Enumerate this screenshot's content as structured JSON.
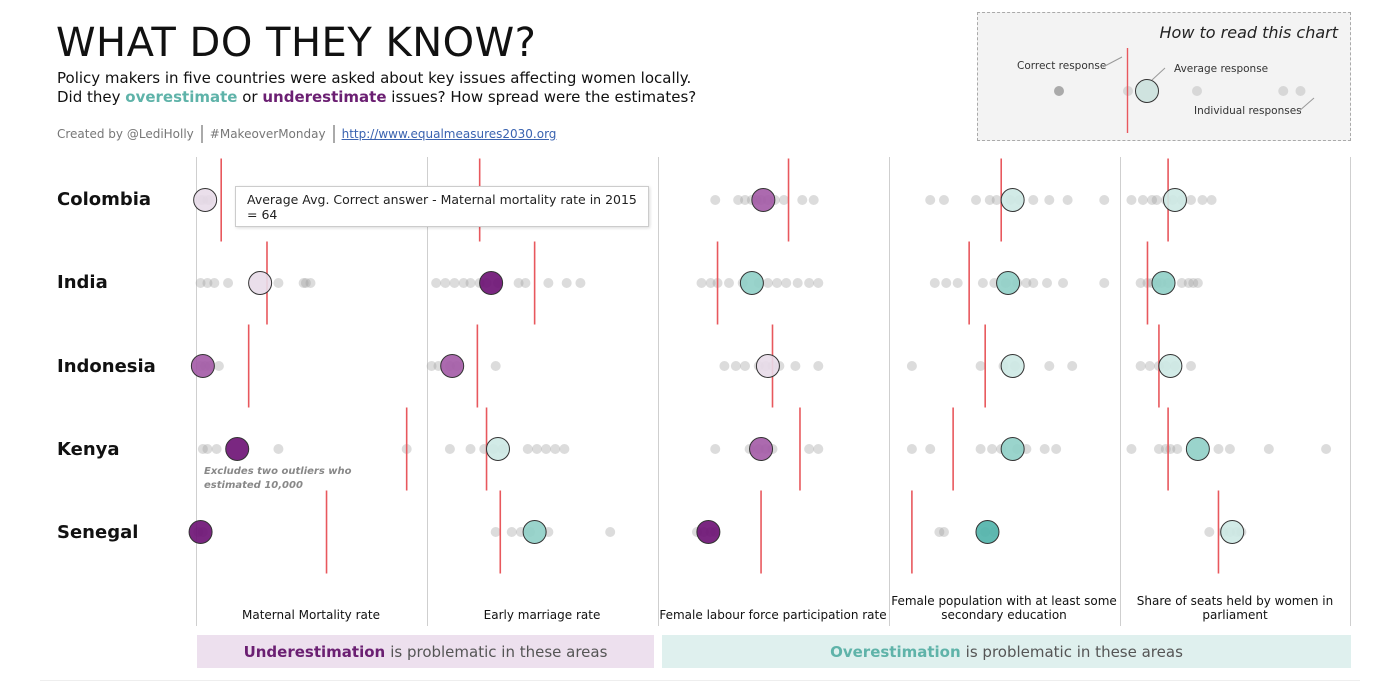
{
  "header": {
    "title": "WHAT DO THEY KNOW?",
    "subtitle_pre": "Policy makers in five countries were asked about key issues affecting women locally. Did they ",
    "subtitle_over": "overestimate",
    "subtitle_mid": " or ",
    "subtitle_under": "underestimate",
    "subtitle_post": " issues? How spread were the estimates?",
    "credit_author": "Created by @LediHolly",
    "credit_tag": "#MakeoverMonday",
    "credit_link": "http://www.equalmeasures2030.org"
  },
  "legend": {
    "title": "How to read this chart",
    "correct": "Correct response",
    "average": "Average response",
    "individual": "Individual responses"
  },
  "tooltip": "Average Avg. Correct answer - Maternal mortality rate in 2015 = 64",
  "note": "Excludes two outliers who estimated 10,000",
  "bands": {
    "under_word": "Underestimation",
    "under_rest": "is problematic in these areas",
    "over_word": "Overestimation",
    "over_rest": "is problematic in these areas"
  },
  "colors": {
    "correct_line": "#e8585d",
    "under_dark": "#6b0f73",
    "under_mid": "#a35aa6",
    "under_light": "#e8dbe9",
    "over_dark": "#4fb3aa",
    "over_mid": "#8fcfc7",
    "over_light": "#cde9e4",
    "individual": "#c8c8c8"
  },
  "chart_data": {
    "type": "scatter",
    "description_note": "Strip plot per country and issue; values are relative positions (0-1) within each column: correct answer line, average response and individual responses.",
    "columns": [
      "Maternal Mortality rate",
      "Early marriage rate",
      "Female labour force participation rate",
      "Female population with at least some secondary education",
      "Share of seats held by women in parliament"
    ],
    "rows": [
      "Colombia",
      "India",
      "Indonesia",
      "Kenya",
      "Senegal"
    ],
    "cells": [
      [
        {
          "correct": 0.11,
          "avg": 0.04,
          "shade": "under_light",
          "ind": [
            0.02,
            0.03,
            0.05,
            0.06
          ]
        },
        {
          "correct": 0.23,
          "avg": null,
          "shade": null,
          "ind": []
        },
        {
          "correct": 0.57,
          "avg": 0.46,
          "shade": "under_mid",
          "ind": [
            0.25,
            0.35,
            0.38,
            0.41,
            0.43,
            0.45,
            0.48,
            0.51,
            0.55,
            0.63,
            0.68
          ]
        },
        {
          "correct": 0.49,
          "avg": 0.54,
          "shade": "over_light",
          "ind": [
            0.18,
            0.24,
            0.38,
            0.44,
            0.47,
            0.53,
            0.57,
            0.63,
            0.7,
            0.78,
            0.94
          ]
        },
        {
          "correct": 0.21,
          "avg": 0.24,
          "shade": "over_light",
          "ind": [
            0.05,
            0.1,
            0.14,
            0.16,
            0.2,
            0.23,
            0.27,
            0.31,
            0.36,
            0.4
          ]
        }
      ],
      [
        {
          "correct": 0.31,
          "avg": 0.28,
          "shade": "under_light",
          "ind": [
            0.02,
            0.05,
            0.08,
            0.14,
            0.36,
            0.47,
            0.48,
            0.5
          ]
        },
        {
          "correct": 0.47,
          "avg": 0.28,
          "shade": "under_dark",
          "ind": [
            0.04,
            0.08,
            0.12,
            0.16,
            0.19,
            0.23,
            0.26,
            0.31,
            0.4,
            0.43,
            0.53,
            0.61,
            0.67
          ]
        },
        {
          "correct": 0.26,
          "avg": 0.41,
          "shade": "over_mid",
          "ind": [
            0.19,
            0.23,
            0.26,
            0.31,
            0.37,
            0.44,
            0.48,
            0.52,
            0.56,
            0.61,
            0.66,
            0.7
          ]
        },
        {
          "correct": 0.35,
          "avg": 0.52,
          "shade": "over_mid",
          "ind": [
            0.2,
            0.25,
            0.3,
            0.41,
            0.46,
            0.51,
            0.56,
            0.6,
            0.63,
            0.69,
            0.76,
            0.94
          ]
        },
        {
          "correct": 0.12,
          "avg": 0.19,
          "shade": "over_mid",
          "ind": [
            0.09,
            0.12,
            0.14,
            0.16,
            0.18,
            0.21,
            0.27,
            0.3,
            0.32,
            0.34
          ]
        }
      ],
      [
        {
          "correct": 0.23,
          "avg": 0.03,
          "shade": "under_mid",
          "ind": [
            0.02,
            0.04,
            0.06,
            0.1
          ]
        },
        {
          "correct": 0.22,
          "avg": 0.11,
          "shade": "under_mid",
          "ind": [
            0.02,
            0.05,
            0.1,
            0.13,
            0.3
          ]
        },
        {
          "correct": 0.5,
          "avg": 0.48,
          "shade": "under_light",
          "ind": [
            0.29,
            0.34,
            0.38,
            0.44,
            0.47,
            0.5,
            0.53,
            0.6,
            0.7
          ]
        },
        {
          "correct": 0.42,
          "avg": 0.54,
          "shade": "over_light",
          "ind": [
            0.1,
            0.4,
            0.5,
            0.55,
            0.7,
            0.8
          ]
        },
        {
          "correct": 0.17,
          "avg": 0.22,
          "shade": "over_light",
          "ind": [
            0.09,
            0.13,
            0.17,
            0.2,
            0.24,
            0.31
          ]
        }
      ],
      [
        {
          "correct": 0.92,
          "avg": 0.18,
          "shade": "under_dark",
          "ind": [
            0.03,
            0.05,
            0.09,
            0.36,
            0.92
          ]
        },
        {
          "correct": 0.26,
          "avg": 0.31,
          "shade": "over_light",
          "ind": [
            0.1,
            0.19,
            0.25,
            0.29,
            0.33,
            0.44,
            0.48,
            0.52,
            0.56,
            0.6
          ]
        },
        {
          "correct": 0.62,
          "avg": 0.45,
          "shade": "under_mid",
          "ind": [
            0.25,
            0.4,
            0.44,
            0.47,
            0.5,
            0.66,
            0.7
          ]
        },
        {
          "correct": 0.28,
          "avg": 0.54,
          "shade": "over_mid",
          "ind": [
            0.1,
            0.18,
            0.4,
            0.45,
            0.49,
            0.56,
            0.6,
            0.68,
            0.73
          ]
        },
        {
          "correct": 0.21,
          "avg": 0.34,
          "shade": "over_mid",
          "ind": [
            0.05,
            0.17,
            0.2,
            0.22,
            0.25,
            0.43,
            0.48,
            0.65,
            0.9
          ]
        }
      ],
      [
        {
          "correct": 0.57,
          "avg": 0.02,
          "shade": "under_dark",
          "ind": [
            0.01,
            0.03
          ]
        },
        {
          "correct": 0.32,
          "avg": 0.47,
          "shade": "over_mid",
          "ind": [
            0.3,
            0.37,
            0.41,
            0.45,
            0.53,
            0.8
          ]
        },
        {
          "correct": 0.45,
          "avg": 0.22,
          "shade": "under_dark",
          "ind": [
            0.17,
            0.2,
            0.23,
            0.25
          ]
        },
        {
          "correct": 0.1,
          "avg": 0.43,
          "shade": "over_dark",
          "ind": [
            0.22,
            0.24,
            0.42,
            0.46
          ]
        },
        {
          "correct": 0.43,
          "avg": 0.49,
          "shade": "over_light",
          "ind": [
            0.39,
            0.45,
            0.48,
            0.51,
            0.53
          ]
        }
      ]
    ],
    "legend_example": {
      "correct": 0.5,
      "avg": 0.55,
      "ind": [
        0.2,
        0.4,
        0.45,
        0.6,
        0.85,
        0.9
      ]
    }
  }
}
